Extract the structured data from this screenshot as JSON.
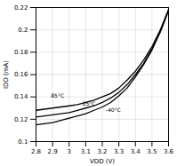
{
  "chart_data": {
    "type": "line",
    "xlabel": "VDD (V)",
    "ylabel": "IDD (mA)",
    "xlim": [
      2.8,
      3.6
    ],
    "ylim": [
      0.1,
      0.22
    ],
    "xticks": [
      2.8,
      2.9,
      3.0,
      3.1,
      3.2,
      3.3,
      3.4,
      3.5,
      3.6
    ],
    "yticks": [
      0.1,
      0.12,
      0.14,
      0.16,
      0.18,
      0.2,
      0.22
    ],
    "grid": true,
    "color": "#000000",
    "x": [
      2.8,
      2.85,
      2.9,
      2.95,
      3.0,
      3.05,
      3.1,
      3.15,
      3.2,
      3.25,
      3.3,
      3.35,
      3.4,
      3.45,
      3.5,
      3.55,
      3.6
    ],
    "series": [
      {
        "values": [
          0.128,
          0.129,
          0.13,
          0.131,
          0.132,
          0.133,
          0.135,
          0.137,
          0.14,
          0.143,
          0.148,
          0.155,
          0.163,
          0.173,
          0.185,
          0.2,
          0.218
        ]
      },
      {
        "values": [
          0.122,
          0.123,
          0.124,
          0.125,
          0.126,
          0.128,
          0.13,
          0.132,
          0.135,
          0.139,
          0.144,
          0.151,
          0.16,
          0.17,
          0.183,
          0.199,
          0.218
        ]
      },
      {
        "values": [
          0.115,
          0.116,
          0.117,
          0.119,
          0.121,
          0.123,
          0.125,
          0.128,
          0.131,
          0.135,
          0.141,
          0.148,
          0.158,
          0.169,
          0.182,
          0.198,
          0.217
        ]
      }
    ],
    "annotations": [
      {
        "x": 2.89,
        "y": 0.1405,
        "text": "85°C"
      },
      {
        "x": 3.08,
        "y": 0.134,
        "text": "25°C"
      },
      {
        "x": 3.22,
        "y": 0.1278,
        "text": "-40°C"
      }
    ]
  }
}
